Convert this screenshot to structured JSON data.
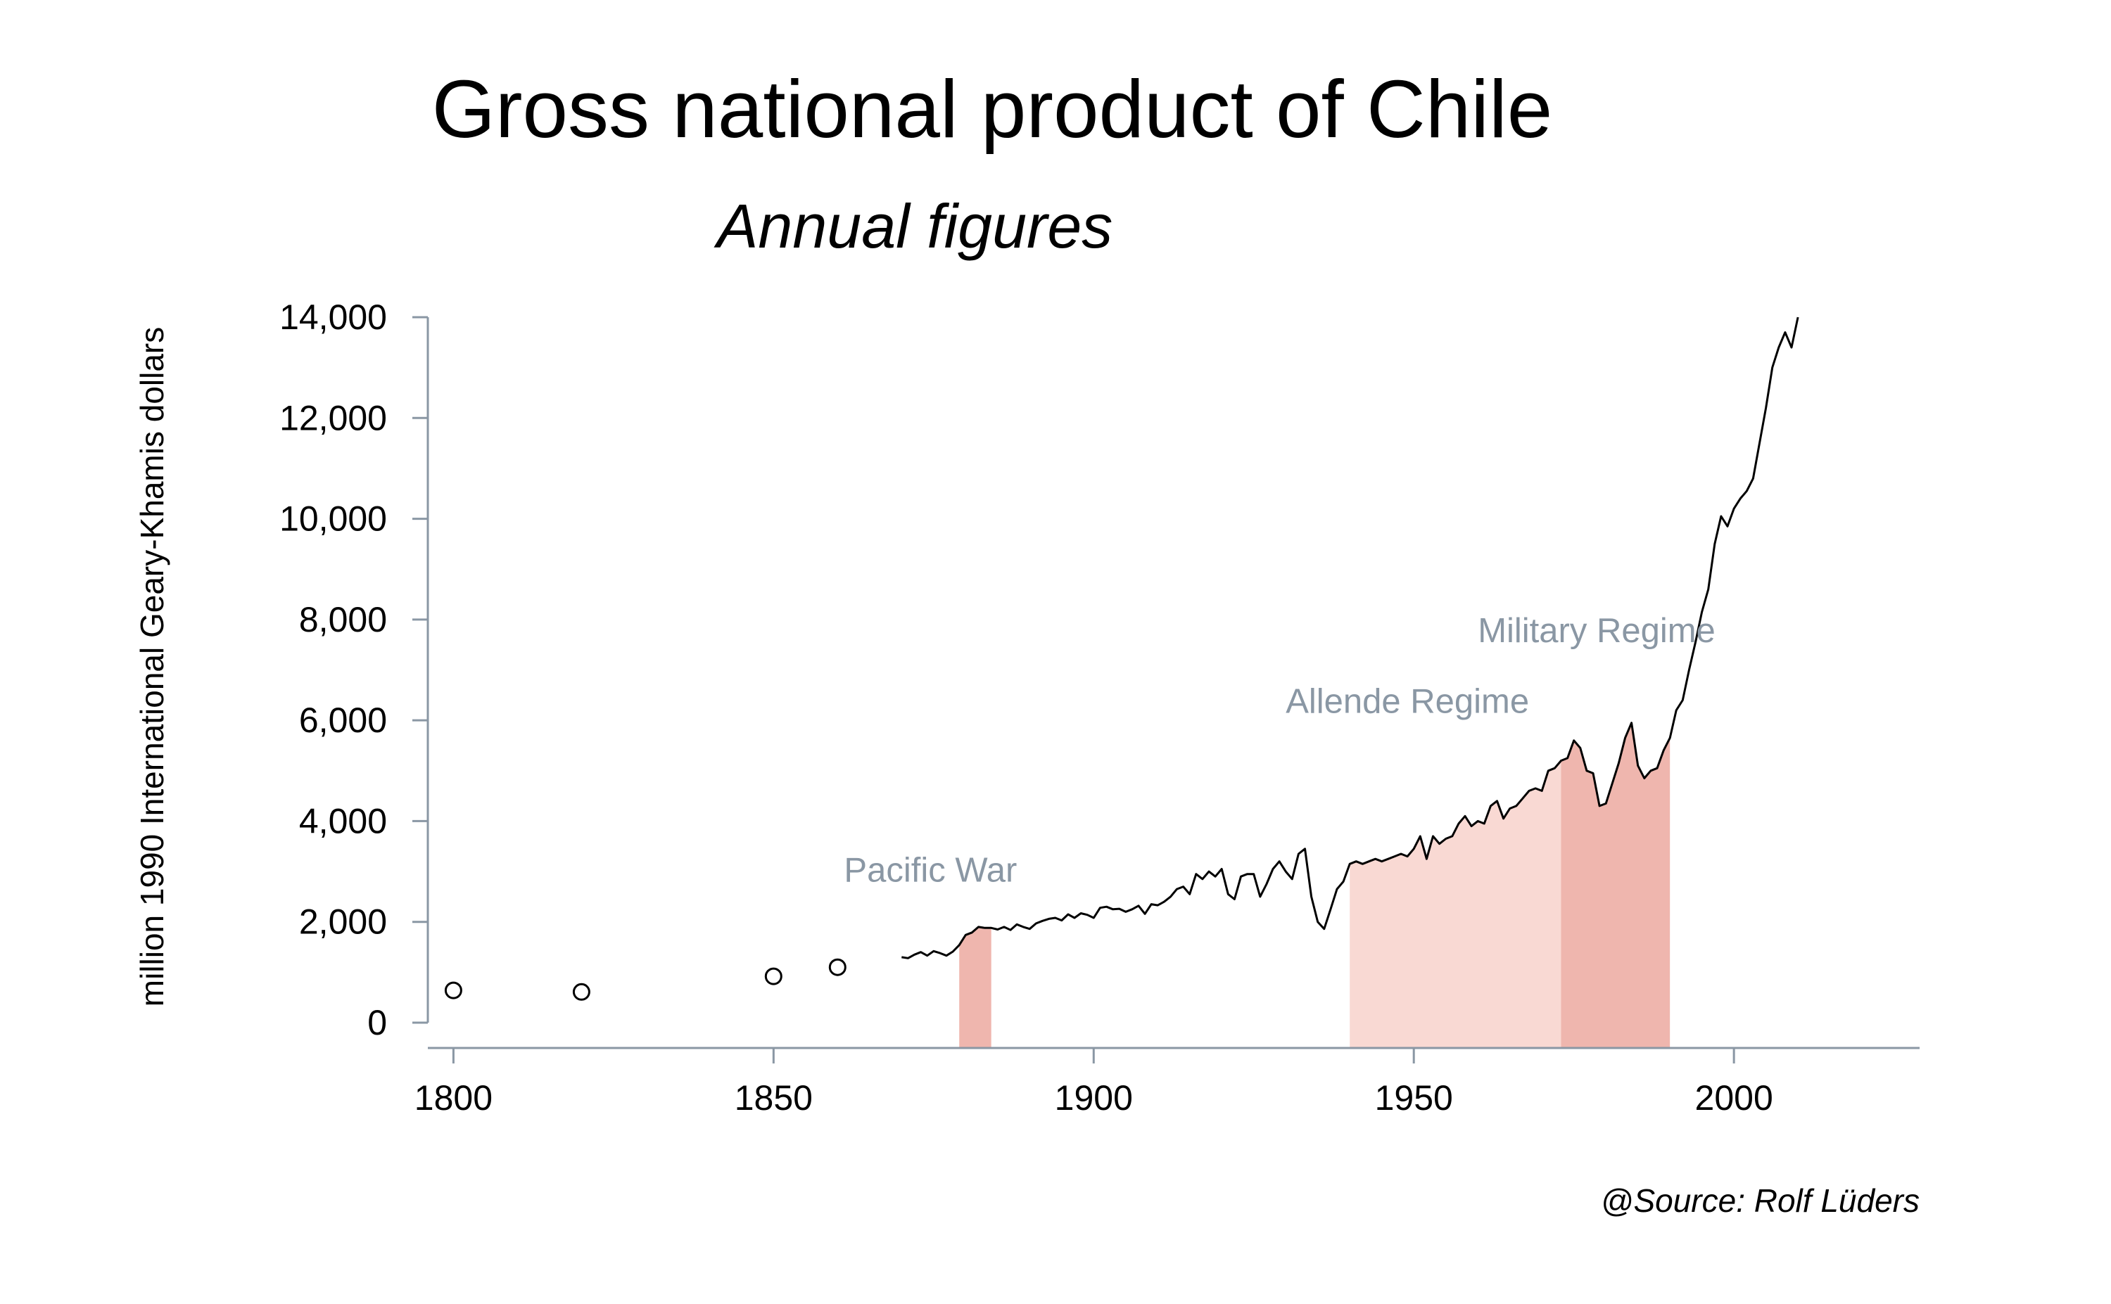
{
  "colors": {
    "line": "#000000",
    "axis": "#8a97a4",
    "annotation_text": "#8a97a4",
    "pacific_war": "#efb6ae",
    "allende": "#f9d9d3",
    "military": "#efb6ae"
  },
  "chart_data": {
    "type": "line",
    "title": "Gross national product of Chile",
    "subtitle": "Annual figures",
    "ylabel": "million 1990 International Geary-Khamis dollars",
    "xlabel": "",
    "source": "@Source: Rolf Lüders",
    "xlim": [
      1796,
      2029
    ],
    "ylim": [
      0,
      14000
    ],
    "x_ticks": [
      1800,
      1850,
      1900,
      1950,
      2000
    ],
    "x_tick_labels": [
      "1800",
      "1850",
      "1900",
      "1950",
      "2000"
    ],
    "y_ticks": [
      0,
      2000,
      4000,
      6000,
      8000,
      10000,
      12000,
      14000
    ],
    "y_tick_labels": [
      "0",
      "2,000",
      "4,000",
      "6,000",
      "8,000",
      "10,000",
      "12,000",
      "14,000"
    ],
    "grid": false,
    "legend": "none",
    "early_points": [
      {
        "x": 1800,
        "y": 640
      },
      {
        "x": 1820,
        "y": 610
      },
      {
        "x": 1850,
        "y": 920
      },
      {
        "x": 1860,
        "y": 1100
      }
    ],
    "series": [
      {
        "x": [
          1870,
          1871,
          1872,
          1873,
          1874,
          1875,
          1876,
          1877,
          1878,
          1879,
          1880,
          1881,
          1882,
          1883,
          1884,
          1885,
          1886,
          1887,
          1888,
          1889,
          1890,
          1891,
          1892,
          1893,
          1894,
          1895,
          1896,
          1897,
          1898,
          1899,
          1900,
          1901,
          1902,
          1903,
          1904,
          1905,
          1906,
          1907,
          1908,
          1909,
          1910,
          1911,
          1912,
          1913,
          1914,
          1915,
          1916,
          1917,
          1918,
          1919,
          1920,
          1921,
          1922,
          1923,
          1924,
          1925,
          1926,
          1927,
          1928,
          1929,
          1930,
          1931,
          1932,
          1933,
          1934,
          1935,
          1936,
          1937,
          1938,
          1939,
          1940,
          1941,
          1942,
          1943,
          1944,
          1945,
          1946,
          1947,
          1948,
          1949,
          1950,
          1951,
          1952,
          1953,
          1954,
          1955,
          1956,
          1957,
          1958,
          1959,
          1960,
          1961,
          1962,
          1963,
          1964,
          1965,
          1966,
          1967,
          1968,
          1969,
          1970,
          1971,
          1972,
          1973,
          1974,
          1975,
          1976,
          1977,
          1978,
          1979,
          1980,
          1981,
          1982,
          1983,
          1984,
          1985,
          1986,
          1987,
          1988,
          1989,
          1990,
          1991,
          1992,
          1993,
          1994,
          1995,
          1996,
          1997,
          1998,
          1999,
          2000,
          2001,
          2002,
          2003,
          2004,
          2005,
          2006,
          2007,
          2008,
          2009,
          2010
        ],
        "values": [
          1300,
          1280,
          1350,
          1400,
          1330,
          1420,
          1380,
          1330,
          1410,
          1540,
          1740,
          1790,
          1900,
          1880,
          1880,
          1850,
          1900,
          1840,
          1950,
          1900,
          1860,
          1970,
          2020,
          2060,
          2080,
          2030,
          2150,
          2080,
          2170,
          2140,
          2080,
          2280,
          2300,
          2250,
          2260,
          2200,
          2250,
          2320,
          2160,
          2350,
          2330,
          2400,
          2500,
          2650,
          2700,
          2550,
          2950,
          2850,
          3000,
          2900,
          3050,
          2550,
          2450,
          2900,
          2950,
          2950,
          2500,
          2750,
          3050,
          3200,
          3000,
          2850,
          3350,
          3450,
          2500,
          2000,
          1860,
          2250,
          2650,
          2800,
          3150,
          3200,
          3150,
          3200,
          3250,
          3200,
          3250,
          3300,
          3350,
          3300,
          3450,
          3700,
          3250,
          3700,
          3550,
          3650,
          3700,
          3950,
          4100,
          3900,
          4000,
          3950,
          4300,
          4400,
          4050,
          4250,
          4300,
          4450,
          4600,
          4650,
          4600,
          5000,
          5050,
          5200,
          5250,
          5600,
          5450,
          5000,
          4950,
          4300,
          4350,
          4750,
          5150,
          5650,
          5950,
          5100,
          4850,
          5000,
          5050,
          5400,
          5650,
          6200,
          6400,
          7000,
          7550,
          8150,
          8600,
          9500,
          10050,
          9850,
          10200,
          10400,
          10550,
          10800,
          11500,
          12200,
          13000,
          13400,
          13700,
          13400,
          14000
        ]
      }
    ],
    "annotations": [
      {
        "label": "Pacific War",
        "x_start": 1879,
        "x_end": 1884,
        "label_x": 1861,
        "label_y": 2800
      },
      {
        "label": "Allende Regime",
        "x_start": 1940,
        "x_end": 1973,
        "label_x": 1930,
        "label_y": 6150
      },
      {
        "label": "Military Regime",
        "x_start": 1973,
        "x_end": 1990,
        "label_x": 1960,
        "label_y": 7550
      }
    ]
  }
}
